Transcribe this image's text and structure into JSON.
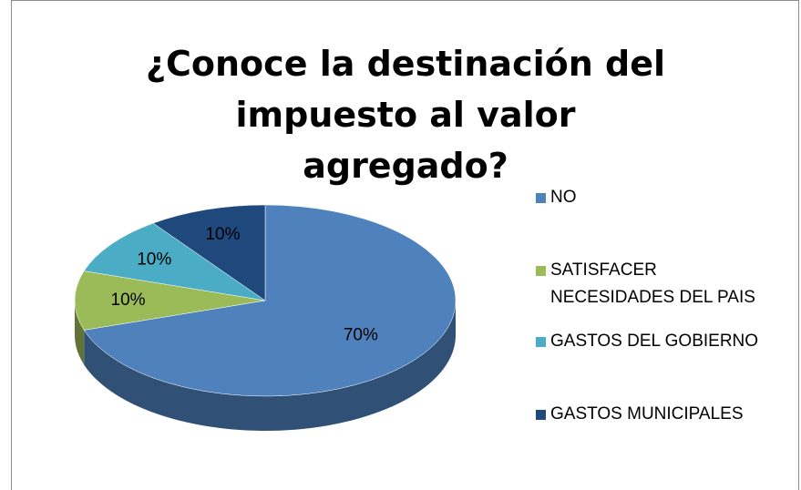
{
  "chart_data": {
    "type": "pie",
    "title": "¿Conoce la destinación del impuesto al valor agregado?",
    "categories": [
      "NO",
      "SATISFACER NECESIDADES DEL PAIS",
      "GASTOS DEL GOBIERNO",
      "GASTOS MUNICIPALES"
    ],
    "values": [
      70,
      10,
      10,
      10
    ],
    "value_labels": [
      "70%",
      "10%",
      "10%",
      "10%"
    ],
    "colors": [
      "#4f81bd",
      "#9bbb59",
      "#4bacc6",
      "#1f497d"
    ],
    "legend": "right"
  }
}
